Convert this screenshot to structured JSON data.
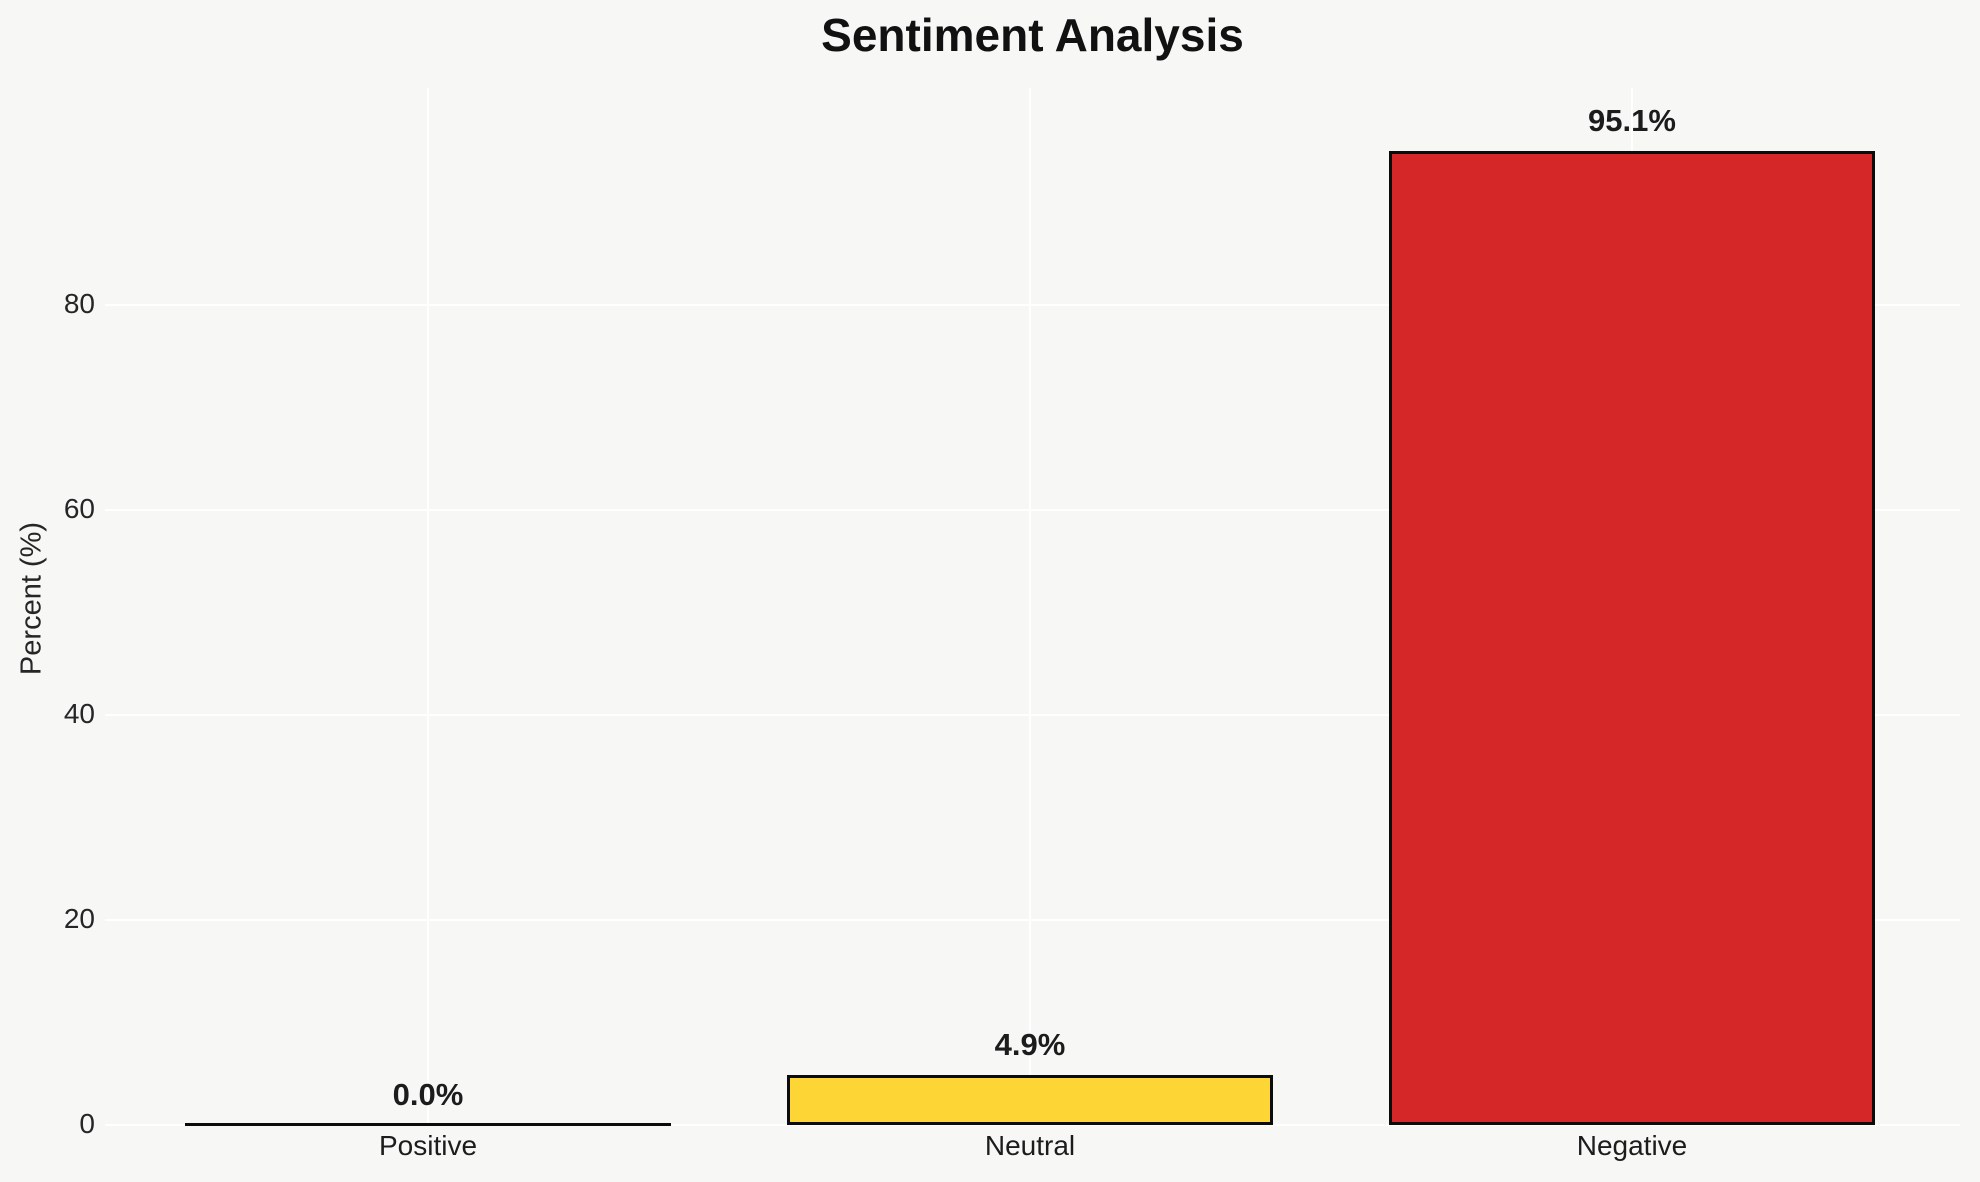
{
  "title": "Sentiment Analysis",
  "ylabel": "Percent (%)",
  "colors": {
    "background": "#f7f7f6",
    "gridline": "#ffffff",
    "bar_edge": "#0c0c0c",
    "text": "#1c1c1c"
  },
  "chart_data": {
    "type": "bar",
    "title": "Sentiment Analysis",
    "xlabel": "",
    "ylabel": "Percent (%)",
    "categories": [
      "Positive",
      "Neutral",
      "Negative"
    ],
    "values": [
      0.0,
      4.9,
      95.1
    ],
    "value_labels": [
      "0.0%",
      "4.9%",
      "95.1%"
    ],
    "bar_colors": [
      null,
      "#FDD535",
      "#D62728"
    ],
    "yticks": [
      0,
      20,
      40,
      60,
      80
    ],
    "ylim": [
      0,
      101.2
    ],
    "grid": true,
    "legend": false
  }
}
